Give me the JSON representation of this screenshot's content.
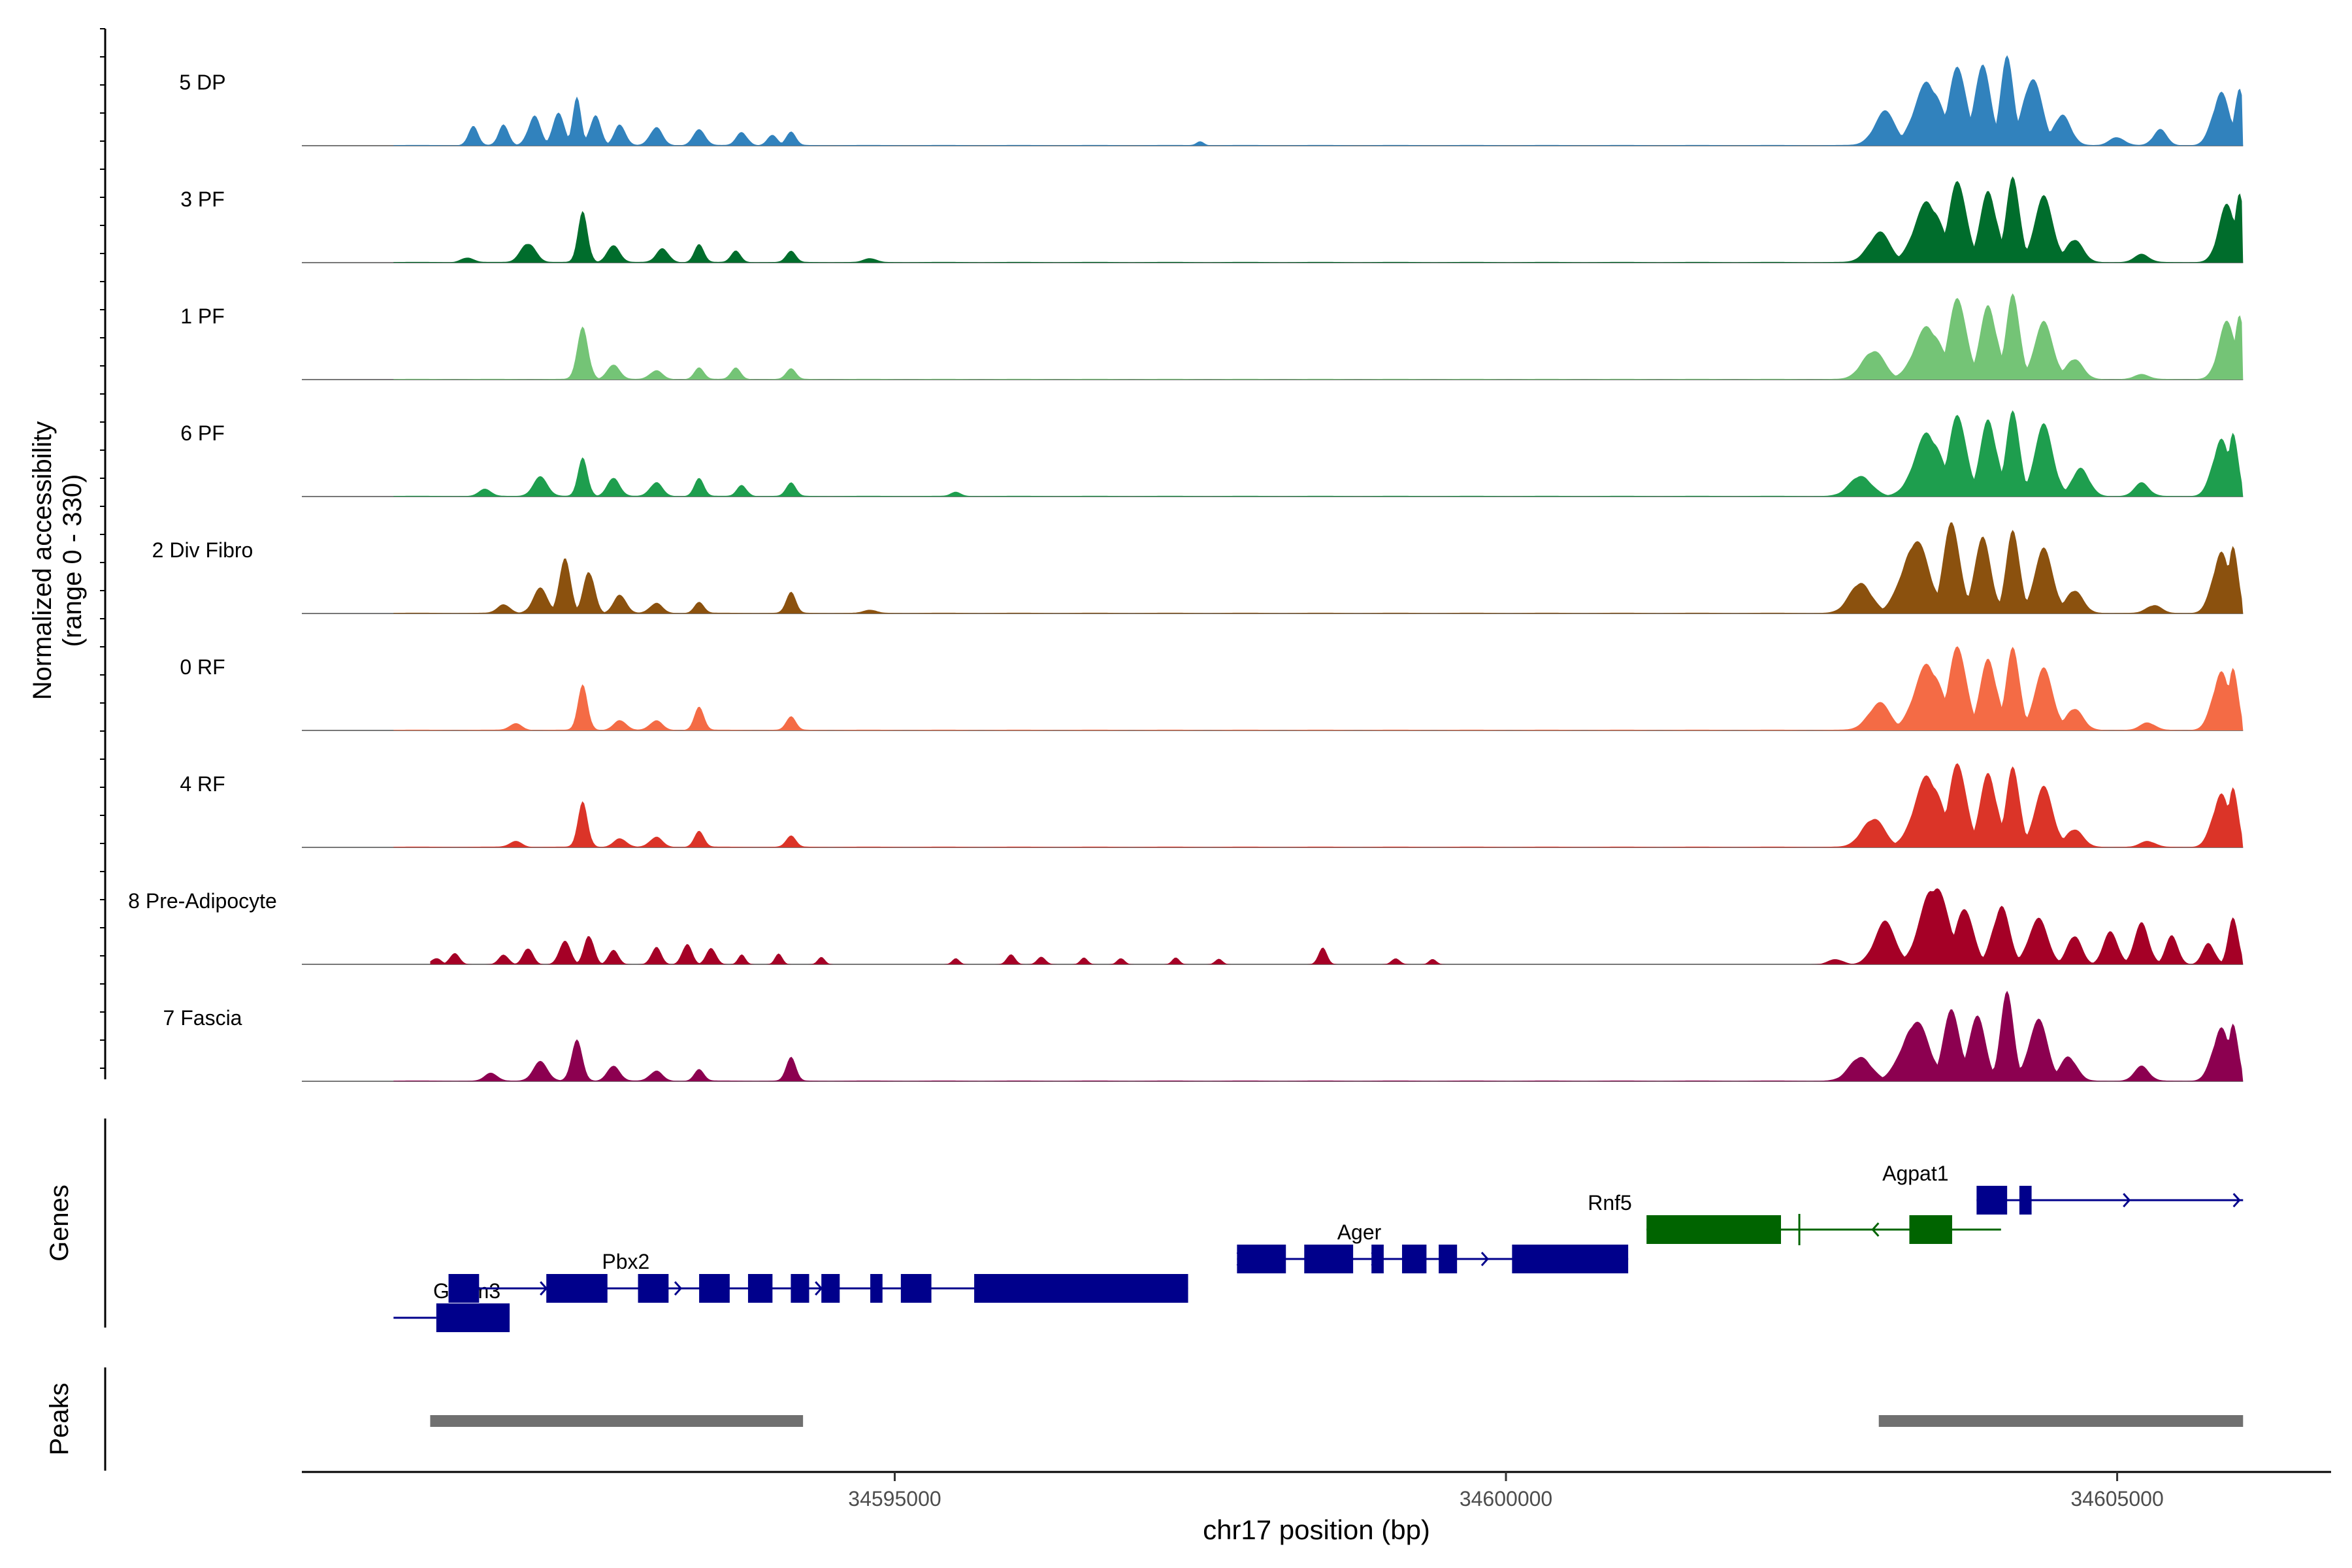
{
  "chart_data": {
    "type": "area",
    "title": "",
    "xlabel": "chr17 position (bp)",
    "ylabel_line1": "Normalized accessibility",
    "ylabel_line2": "(range 0 - 330)",
    "yrange": [
      0,
      330
    ],
    "xlim": [
      34590150,
      34606750
    ],
    "x_ticks": [
      34595000,
      34600000,
      34605000
    ],
    "x_tick_labels": [
      "34595000",
      "34600000",
      "34605000"
    ],
    "genes_label": "Genes",
    "peaks_label": "Peaks",
    "tracks": [
      {
        "name": "5 DP",
        "color": "#3182BD",
        "base": 2.5,
        "left_edge": 34590900,
        "right_edge": 34606030,
        "peaks": [
          [
            34591550,
            70,
            40
          ],
          [
            34591800,
            85,
            40
          ],
          [
            34592050,
            110,
            50
          ],
          [
            34592250,
            135,
            45
          ],
          [
            34592400,
            170,
            35
          ],
          [
            34592550,
            115,
            45
          ],
          [
            34592750,
            85,
            45
          ],
          [
            34593050,
            72,
            50
          ],
          [
            34593400,
            55,
            50
          ],
          [
            34593750,
            50,
            45
          ],
          [
            34594000,
            42,
            40
          ],
          [
            34594150,
            48,
            40
          ],
          [
            34597500,
            15,
            30
          ],
          [
            34603100,
            120,
            90
          ],
          [
            34603450,
            240,
            110
          ],
          [
            34603700,
            310,
            70
          ],
          [
            34603900,
            285,
            70
          ],
          [
            34604100,
            330,
            55
          ],
          [
            34604300,
            255,
            80
          ],
          [
            34604550,
            120,
            70
          ],
          [
            34605000,
            32,
            60
          ],
          [
            34605350,
            58,
            55
          ],
          [
            34605850,
            200,
            70
          ],
          [
            34606000,
            230,
            40
          ]
        ]
      },
      {
        "name": "3 PF",
        "color": "#006D2C",
        "base": 2.5,
        "left_edge": 34590900,
        "right_edge": 34606030,
        "peaks": [
          [
            34591500,
            18,
            50
          ],
          [
            34592000,
            75,
            60
          ],
          [
            34592450,
            185,
            40
          ],
          [
            34592700,
            70,
            50
          ],
          [
            34593100,
            55,
            50
          ],
          [
            34593400,
            62,
            40
          ],
          [
            34593700,
            42,
            40
          ],
          [
            34594150,
            40,
            40
          ],
          [
            34594800,
            15,
            50
          ],
          [
            34603050,
            110,
            90
          ],
          [
            34603450,
            230,
            110
          ],
          [
            34603700,
            320,
            70
          ],
          [
            34603950,
            260,
            70
          ],
          [
            34604150,
            330,
            55
          ],
          [
            34604400,
            230,
            80
          ],
          [
            34604650,
            90,
            70
          ],
          [
            34605200,
            30,
            60
          ],
          [
            34605900,
            220,
            70
          ],
          [
            34606000,
            280,
            40
          ]
        ]
      },
      {
        "name": "1 PF",
        "color": "#74C476",
        "base": 2.5,
        "left_edge": 34590900,
        "right_edge": 34606030,
        "peaks": [
          [
            34592450,
            190,
            45
          ],
          [
            34592700,
            60,
            50
          ],
          [
            34593050,
            35,
            50
          ],
          [
            34593400,
            40,
            40
          ],
          [
            34593700,
            42,
            40
          ],
          [
            34594150,
            38,
            40
          ],
          [
            34603000,
            110,
            90
          ],
          [
            34603450,
            200,
            110
          ],
          [
            34603700,
            320,
            70
          ],
          [
            34603950,
            270,
            70
          ],
          [
            34604150,
            330,
            55
          ],
          [
            34604400,
            200,
            80
          ],
          [
            34604650,
            80,
            70
          ],
          [
            34605200,
            18,
            60
          ],
          [
            34605900,
            220,
            70
          ],
          [
            34606000,
            260,
            40
          ]
        ]
      },
      {
        "name": "6 PF",
        "color": "#1E9E4E",
        "base": 2.5,
        "left_edge": 34590900,
        "right_edge": 34606030,
        "peaks": [
          [
            34591650,
            25,
            50
          ],
          [
            34592100,
            70,
            60
          ],
          [
            34592450,
            140,
            40
          ],
          [
            34592700,
            75,
            50
          ],
          [
            34593050,
            55,
            50
          ],
          [
            34593400,
            62,
            40
          ],
          [
            34593750,
            42,
            40
          ],
          [
            34594150,
            48,
            40
          ],
          [
            34595500,
            15,
            40
          ],
          [
            34602900,
            80,
            90
          ],
          [
            34603450,
            240,
            110
          ],
          [
            34603700,
            320,
            70
          ],
          [
            34603950,
            280,
            70
          ],
          [
            34604150,
            330,
            55
          ],
          [
            34604400,
            250,
            80
          ],
          [
            34604700,
            110,
            70
          ],
          [
            34605200,
            50,
            60
          ],
          [
            34605850,
            215,
            70
          ],
          [
            34605950,
            255,
            40
          ]
        ]
      },
      {
        "name": "2 Div Fibro",
        "color": "#8B510E",
        "base": 2.5,
        "left_edge": 34590900,
        "right_edge": 34606030,
        "peaks": [
          [
            34591800,
            35,
            50
          ],
          [
            34592100,
            90,
            60
          ],
          [
            34592300,
            220,
            45
          ],
          [
            34592500,
            165,
            45
          ],
          [
            34592750,
            75,
            50
          ],
          [
            34593050,
            40,
            50
          ],
          [
            34593400,
            38,
            40
          ],
          [
            34594150,
            75,
            40
          ],
          [
            34594800,
            12,
            50
          ],
          [
            34602900,
            120,
            90
          ],
          [
            34603350,
            280,
            110
          ],
          [
            34603650,
            330,
            70
          ],
          [
            34603900,
            270,
            70
          ],
          [
            34604150,
            320,
            55
          ],
          [
            34604400,
            225,
            80
          ],
          [
            34604650,
            90,
            70
          ],
          [
            34605300,
            30,
            60
          ],
          [
            34605850,
            230,
            70
          ],
          [
            34605950,
            270,
            40
          ]
        ]
      },
      {
        "name": "0 RF",
        "color": "#F46B45",
        "base": 2.5,
        "left_edge": 34590900,
        "right_edge": 34606030,
        "peaks": [
          [
            34591900,
            25,
            50
          ],
          [
            34592450,
            165,
            40
          ],
          [
            34592750,
            40,
            50
          ],
          [
            34593050,
            38,
            50
          ],
          [
            34593400,
            80,
            40
          ],
          [
            34594150,
            48,
            40
          ],
          [
            34603050,
            100,
            90
          ],
          [
            34603450,
            250,
            110
          ],
          [
            34603700,
            330,
            70
          ],
          [
            34603950,
            260,
            70
          ],
          [
            34604150,
            320,
            55
          ],
          [
            34604400,
            215,
            80
          ],
          [
            34604650,
            85,
            70
          ],
          [
            34605250,
            28,
            60
          ],
          [
            34605850,
            220,
            70
          ],
          [
            34605950,
            250,
            40
          ]
        ]
      },
      {
        "name": "4 RF",
        "color": "#DB3428",
        "base": 2.5,
        "left_edge": 34590900,
        "right_edge": 34606030,
        "peaks": [
          [
            34591900,
            22,
            50
          ],
          [
            34592450,
            165,
            40
          ],
          [
            34592750,
            35,
            50
          ],
          [
            34593050,
            40,
            50
          ],
          [
            34593400,
            55,
            40
          ],
          [
            34594150,
            40,
            40
          ],
          [
            34603000,
            110,
            90
          ],
          [
            34603450,
            270,
            110
          ],
          [
            34603700,
            330,
            70
          ],
          [
            34603950,
            270,
            70
          ],
          [
            34604150,
            310,
            55
          ],
          [
            34604400,
            210,
            80
          ],
          [
            34604650,
            70,
            70
          ],
          [
            34605250,
            22,
            60
          ],
          [
            34605850,
            200,
            70
          ],
          [
            34605950,
            240,
            40
          ]
        ]
      },
      {
        "name": "8 Pre-Adipocyte",
        "color": "#A50026",
        "base": 0,
        "left_edge": 34591200,
        "right_edge": 34606030,
        "peaks": [
          [
            34591250,
            25,
            40
          ],
          [
            34591400,
            45,
            40
          ],
          [
            34591800,
            40,
            40
          ],
          [
            34592000,
            65,
            40
          ],
          [
            34592300,
            95,
            45
          ],
          [
            34592500,
            115,
            40
          ],
          [
            34592700,
            60,
            40
          ],
          [
            34593050,
            70,
            40
          ],
          [
            34593300,
            80,
            40
          ],
          [
            34593500,
            65,
            40
          ],
          [
            34593750,
            38,
            30
          ],
          [
            34594050,
            45,
            30
          ],
          [
            34594400,
            28,
            30
          ],
          [
            34595500,
            22,
            30
          ],
          [
            34595950,
            35,
            35
          ],
          [
            34596200,
            30,
            35
          ],
          [
            34596550,
            26,
            30
          ],
          [
            34596850,
            25,
            30
          ],
          [
            34597300,
            25,
            30
          ],
          [
            34597650,
            22,
            30
          ],
          [
            34598500,
            65,
            35
          ],
          [
            34599100,
            22,
            35
          ],
          [
            34599400,
            22,
            30
          ],
          [
            34602700,
            20,
            60
          ],
          [
            34603100,
            150,
            90
          ],
          [
            34603500,
            300,
            110
          ],
          [
            34603750,
            230,
            70
          ],
          [
            34604050,
            220,
            70
          ],
          [
            34604350,
            165,
            80
          ],
          [
            34604650,
            115,
            60
          ],
          [
            34604950,
            120,
            60
          ],
          [
            34605200,
            155,
            60
          ],
          [
            34605450,
            110,
            50
          ],
          [
            34605750,
            80,
            50
          ],
          [
            34605950,
            190,
            40
          ]
        ]
      },
      {
        "name": "7 Fascia",
        "color": "#8C0050",
        "base": 2.5,
        "left_edge": 34590900,
        "right_edge": 34606030,
        "peaks": [
          [
            34591700,
            30,
            50
          ],
          [
            34592100,
            70,
            60
          ],
          [
            34592400,
            145,
            45
          ],
          [
            34592700,
            62,
            50
          ],
          [
            34593050,
            40,
            50
          ],
          [
            34593400,
            40,
            40
          ],
          [
            34594150,
            85,
            40
          ],
          [
            34602900,
            95,
            90
          ],
          [
            34603350,
            230,
            110
          ],
          [
            34603650,
            260,
            70
          ],
          [
            34603850,
            240,
            70
          ],
          [
            34604100,
            330,
            55
          ],
          [
            34604350,
            220,
            80
          ],
          [
            34604600,
            95,
            70
          ],
          [
            34605200,
            55,
            60
          ],
          [
            34605850,
            200,
            70
          ],
          [
            34605950,
            230,
            40
          ]
        ]
      }
    ],
    "genes": [
      {
        "name": "Gpsm3",
        "color": "#00008B",
        "strand": "+",
        "row": 2,
        "label_x": 34591500,
        "line": [
          34590900,
          34591250
        ],
        "arrows": [],
        "exons": [
          [
            34591250,
            34591850
          ]
        ]
      },
      {
        "name": "Pbx2",
        "color": "#00008B",
        "strand": "+",
        "row": 1,
        "label_x": 34592800,
        "line": [
          34591350,
          34597400
        ],
        "arrows": [
          34591450,
          34592150,
          34593250,
          34594400
        ],
        "exons": [
          [
            34591350,
            34591600
          ],
          [
            34592150,
            34592650
          ],
          [
            34592900,
            34593150
          ],
          [
            34593400,
            34593650
          ],
          [
            34593800,
            34594000
          ],
          [
            34594150,
            34594300
          ],
          [
            34594400,
            34594550
          ],
          [
            34594800,
            34594900
          ],
          [
            34595050,
            34595300
          ],
          [
            34595650,
            34597400
          ]
        ]
      },
      {
        "name": "Ager",
        "color": "#00008B",
        "strand": "+",
        "row": 0,
        "label_x": 34598800,
        "line": [
          34597800,
          34601000
        ],
        "arrows": [
          34597850,
          34598950,
          34599850
        ],
        "exons": [
          [
            34597800,
            34598200
          ],
          [
            34598350,
            34598750
          ],
          [
            34598900,
            34599000
          ],
          [
            34599150,
            34599350
          ],
          [
            34599450,
            34599600
          ],
          [
            34600050,
            34601000
          ]
        ]
      },
      {
        "name": "Rnf5",
        "color": "#006400",
        "strand": "-",
        "row": -1,
        "label_x": 34600850,
        "line": [
          34601150,
          34604050
        ],
        "arrows": [
          34603000
        ],
        "exons": [
          [
            34601150,
            34602250
          ],
          [
            34603300,
            34603650
          ]
        ],
        "ticks": [
          34602400
        ]
      },
      {
        "name": "Agpat1",
        "color": "#00008B",
        "strand": "+",
        "row": -2,
        "label_x": 34603350,
        "line": [
          34603850,
          34606030
        ],
        "arrows": [
          34604000,
          34605100,
          34606000
        ],
        "exons": [
          [
            34603850,
            34604100
          ],
          [
            34604200,
            34604300
          ]
        ]
      }
    ],
    "peak_regions": [
      [
        34591200,
        34594250
      ],
      [
        34603050,
        34606030
      ]
    ]
  }
}
